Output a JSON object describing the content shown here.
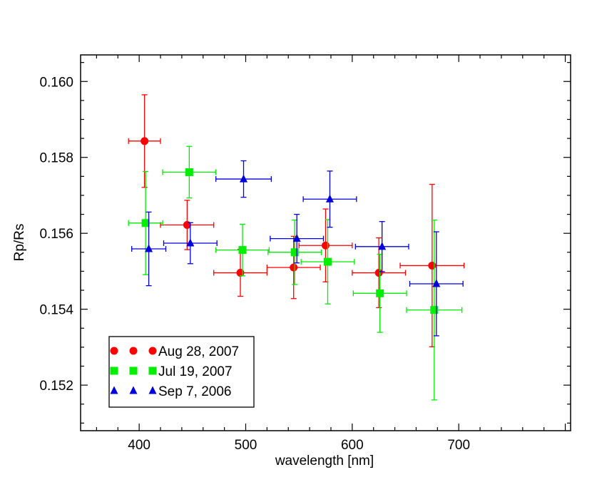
{
  "chart_data": {
    "type": "scatter",
    "title": "",
    "xlabel": "wavelength [nm]",
    "ylabel": "Rp/Rs",
    "xlim": [
      345,
      805
    ],
    "ylim": [
      0.1508,
      0.1607
    ],
    "x_ticks": [
      400,
      500,
      600,
      700
    ],
    "x_tick_labels": [
      "400",
      "500",
      "600",
      "700"
    ],
    "y_ticks": [
      0.152,
      0.154,
      0.156,
      0.158,
      0.16
    ],
    "y_tick_labels": [
      "0.152",
      "0.154",
      "0.156",
      "0.158",
      "0.160"
    ],
    "legend_position": "bottom-left",
    "series": [
      {
        "name": "Aug 28, 2007",
        "color": "#ff0000",
        "marker": "circle",
        "points": [
          {
            "x": 405,
            "xerr": 15,
            "y": 0.15843,
            "yerr_low": 0.00122,
            "yerr_high": 0.00122
          },
          {
            "x": 445,
            "xerr": 25,
            "y": 0.15622,
            "yerr_low": 0.00065,
            "yerr_high": 0.00065
          },
          {
            "x": 495,
            "xerr": 25,
            "y": 0.15496,
            "yerr_low": 0.00062,
            "yerr_high": 0.00062
          },
          {
            "x": 545,
            "xerr": 25,
            "y": 0.1551,
            "yerr_low": 0.00082,
            "yerr_high": 0.00082
          },
          {
            "x": 575,
            "xerr": 25,
            "y": 0.15568,
            "yerr_low": 0.00096,
            "yerr_high": 0.00096
          },
          {
            "x": 625,
            "xerr": 25,
            "y": 0.15496,
            "yerr_low": 0.00092,
            "yerr_high": 0.00092
          },
          {
            "x": 675,
            "xerr": 30,
            "y": 0.15515,
            "yerr_low": 0.00214,
            "yerr_high": 0.00214
          }
        ]
      },
      {
        "name": "Jul 19, 2007",
        "color": "#00ee00",
        "marker": "square",
        "points": [
          {
            "x": 406,
            "xerr": 16,
            "y": 0.15627,
            "yerr_low": 0.00136,
            "yerr_high": 0.00136
          },
          {
            "x": 447,
            "xerr": 25,
            "y": 0.15761,
            "yerr_low": 0.00068,
            "yerr_high": 0.00068
          },
          {
            "x": 497,
            "xerr": 25,
            "y": 0.15556,
            "yerr_low": 0.00068,
            "yerr_high": 0.00068
          },
          {
            "x": 546,
            "xerr": 25,
            "y": 0.1555,
            "yerr_low": 0.00085,
            "yerr_high": 0.00085
          },
          {
            "x": 577,
            "xerr": 25,
            "y": 0.15525,
            "yerr_low": 0.00111,
            "yerr_high": 0.00111
          },
          {
            "x": 626,
            "xerr": 25,
            "y": 0.15442,
            "yerr_low": 0.00103,
            "yerr_high": 0.00103
          },
          {
            "x": 677,
            "xerr": 26,
            "y": 0.15398,
            "yerr_low": 0.00237,
            "yerr_high": 0.00237
          }
        ]
      },
      {
        "name": "Sep 7, 2006",
        "color": "#0000dd",
        "marker": "triangle",
        "points": [
          {
            "x": 409,
            "xerr": 16,
            "y": 0.15559,
            "yerr_low": 0.00097,
            "yerr_high": 0.00097
          },
          {
            "x": 448,
            "xerr": 25,
            "y": 0.15574,
            "yerr_low": 0.00054,
            "yerr_high": 0.00054
          },
          {
            "x": 498,
            "xerr": 26,
            "y": 0.15743,
            "yerr_low": 0.00048,
            "yerr_high": 0.00048
          },
          {
            "x": 548,
            "xerr": 25,
            "y": 0.15586,
            "yerr_low": 0.00064,
            "yerr_high": 0.00064
          },
          {
            "x": 579,
            "xerr": 25,
            "y": 0.1569,
            "yerr_low": 0.00074,
            "yerr_high": 0.00074
          },
          {
            "x": 628,
            "xerr": 25,
            "y": 0.15565,
            "yerr_low": 0.00066,
            "yerr_high": 0.00066
          },
          {
            "x": 679,
            "xerr": 25,
            "y": 0.15467,
            "yerr_low": 0.00137,
            "yerr_high": 0.00137
          }
        ]
      }
    ]
  }
}
